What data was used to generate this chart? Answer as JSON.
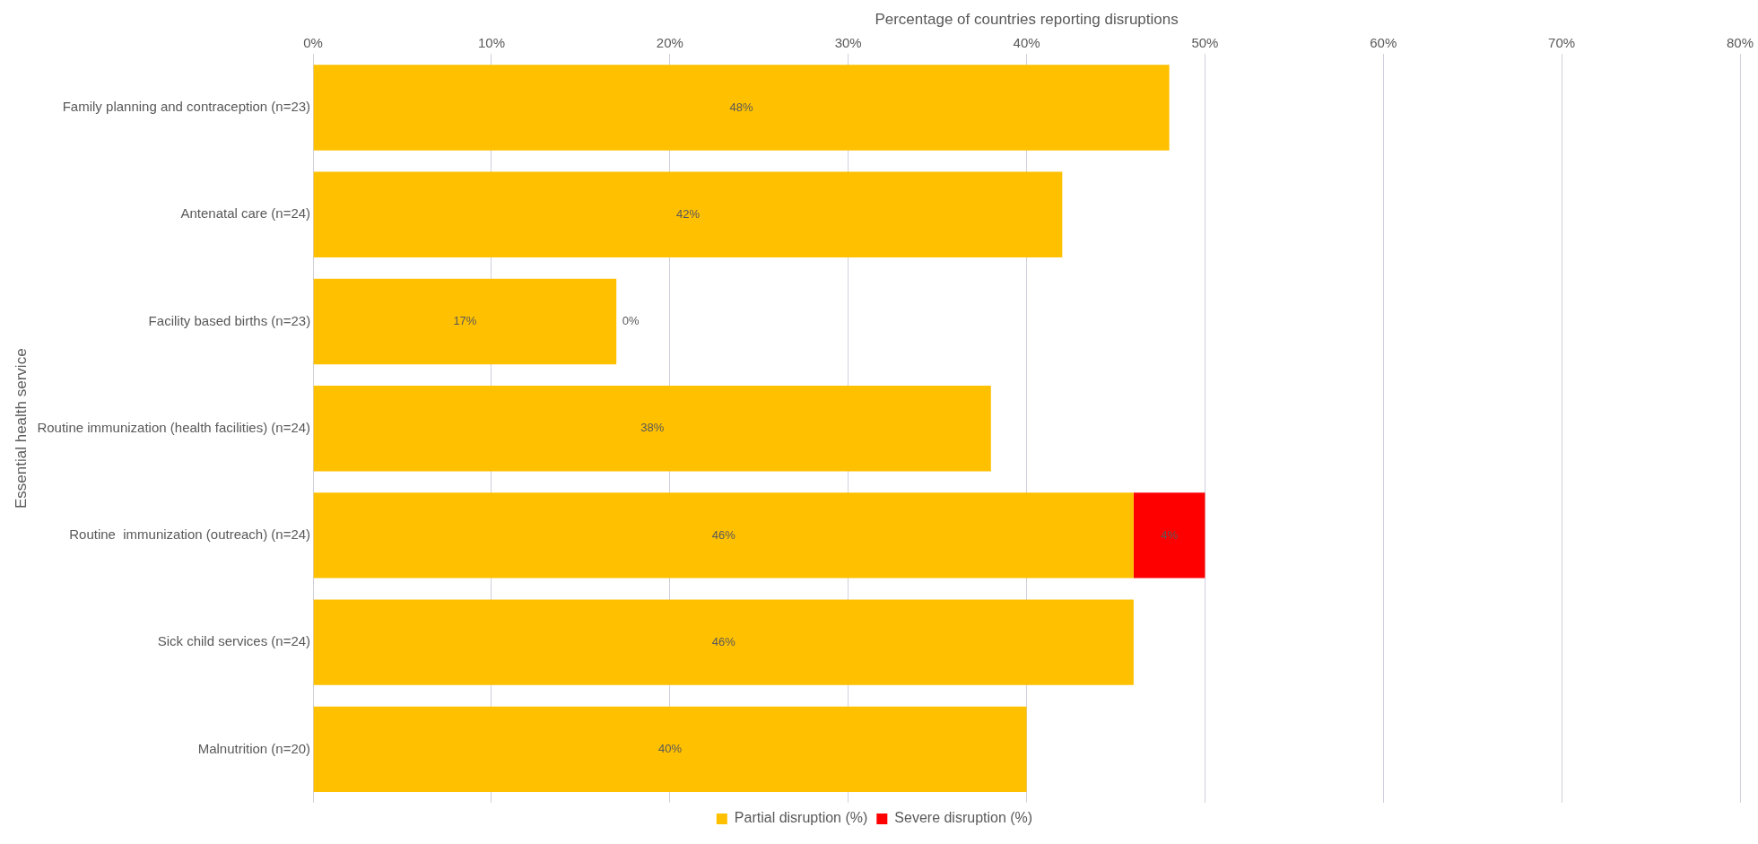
{
  "chart_data": {
    "type": "bar",
    "orientation": "horizontal",
    "stacked": true,
    "xlabel": "Percentage of countries reporting disruptions",
    "ylabel": "Essential health service",
    "categories": [
      "Family planning and contraception (n=23)",
      "Antenatal care (n=24)",
      "Facility based births (n=23)",
      "Routine immunization (health facilities) (n=24)",
      "Routine  immunization (outreach) (n=24)",
      "Sick child services (n=24)",
      "Malnutrition (n=20)"
    ],
    "series": [
      {
        "name": "Partial disruption (%)",
        "color": "#ffc000",
        "values": [
          48,
          42,
          17,
          38,
          46,
          46,
          40
        ],
        "value_labels": [
          "48%",
          "42%",
          "17%",
          "38%",
          "46%",
          "46%",
          "40%"
        ]
      },
      {
        "name": "Severe disruption (%)",
        "color": "#ff0000",
        "values": [
          null,
          null,
          0,
          null,
          4,
          null,
          null
        ],
        "value_labels": [
          null,
          null,
          "0%",
          null,
          "4%",
          null,
          null
        ]
      }
    ],
    "xlim": [
      0,
      80
    ],
    "xticks": [
      {
        "value": 0,
        "label": "0%"
      },
      {
        "value": 10,
        "label": "10%"
      },
      {
        "value": 20,
        "label": "20%"
      },
      {
        "value": 30,
        "label": "30%"
      },
      {
        "value": 40,
        "label": "40%"
      },
      {
        "value": 50,
        "label": "50%"
      },
      {
        "value": 60,
        "label": "60%"
      },
      {
        "value": 70,
        "label": "70%"
      },
      {
        "value": 80,
        "label": "80%"
      }
    ],
    "grid": "x",
    "legend": "bottom"
  }
}
